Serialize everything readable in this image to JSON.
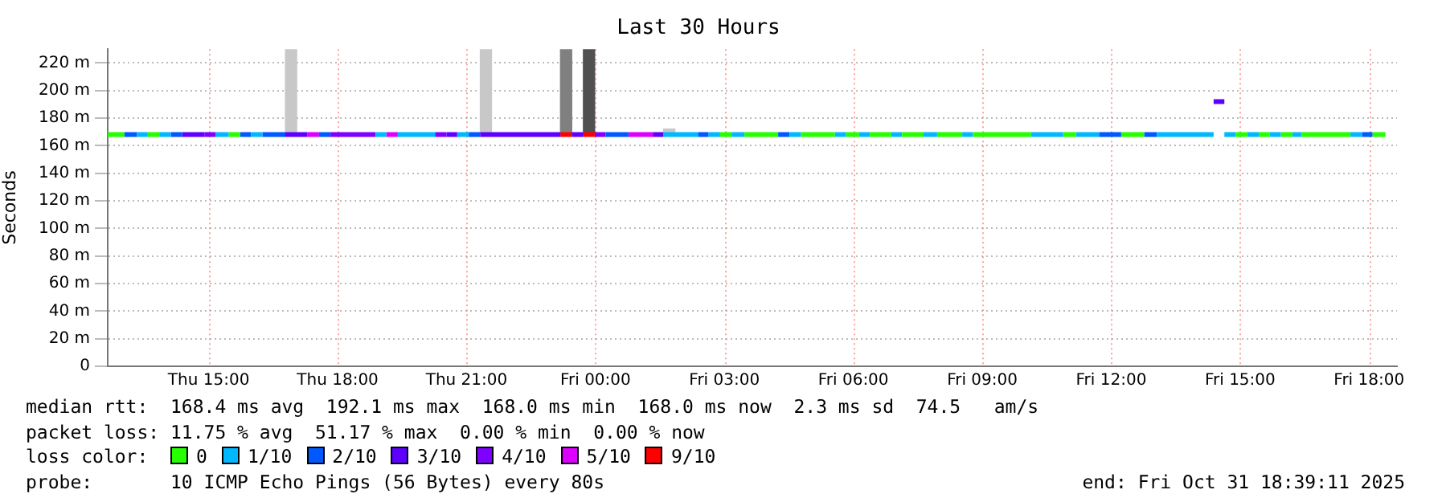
{
  "chart_data": {
    "type": "step",
    "title": "Last 30 Hours",
    "ylabel": "Seconds",
    "legend_title": "loss color:",
    "legend": "bottom",
    "grid": true,
    "xlim": [
      "2025-10-30T12:39",
      "2025-10-31T18:39"
    ],
    "xticks": [
      {
        "value": "2025-10-30T15:00",
        "label": "Thu 15:00"
      },
      {
        "value": "2025-10-30T18:00",
        "label": "Thu 18:00"
      },
      {
        "value": "2025-10-30T21:00",
        "label": "Thu 21:00"
      },
      {
        "value": "2025-10-31T00:00",
        "label": "Fri 00:00"
      },
      {
        "value": "2025-10-31T03:00",
        "label": "Fri 03:00"
      },
      {
        "value": "2025-10-31T06:00",
        "label": "Fri 06:00"
      },
      {
        "value": "2025-10-31T09:00",
        "label": "Fri 09:00"
      },
      {
        "value": "2025-10-31T12:00",
        "label": "Fri 12:00"
      },
      {
        "value": "2025-10-31T15:00",
        "label": "Fri 15:00"
      },
      {
        "value": "2025-10-31T18:00",
        "label": "Fri 18:00"
      }
    ],
    "ylim": [
      0,
      230
    ],
    "yticks": [
      0,
      {
        "value": 20,
        "label": "20 m"
      },
      {
        "value": 40,
        "label": "40 m"
      },
      {
        "value": 60,
        "label": "60 m"
      },
      {
        "value": 80,
        "label": "80 m"
      },
      {
        "value": 100,
        "label": "100 m"
      },
      {
        "value": 120,
        "label": "120 m"
      },
      {
        "value": 140,
        "label": "140 m"
      },
      {
        "value": 160,
        "label": "160 m"
      },
      {
        "value": 180,
        "label": "180 m"
      },
      {
        "value": 200,
        "label": "200 m"
      },
      {
        "value": 220,
        "label": "220 m"
      }
    ],
    "series": [
      {
        "type": "bar",
        "x": [
          "2025-10-30T16:55",
          "2025-10-30T21:27",
          "2025-10-30T23:19",
          "2025-10-30T23:51",
          "2025-10-31T01:43"
        ],
        "base": [
          168,
          168,
          168,
          168,
          168
        ],
        "values": [
          62,
          62,
          62,
          62,
          4
        ],
        "colors": [
          "#c8c8c8",
          "#c8c8c8",
          "#808080",
          "#505050",
          "#c8c8c8"
        ]
      },
      {
        "name": "0",
        "color": "#26ff00",
        "x": [
          "2025-10-30T12:39",
          "2025-10-30T13:02",
          null,
          "2025-10-30T13:35",
          "2025-10-30T13:51",
          null,
          "2025-10-30T15:28",
          "2025-10-30T15:44",
          null,
          "2025-10-31T02:54",
          "2025-10-31T03:10",
          null,
          "2025-10-31T03:28",
          "2025-10-31T04:15",
          null,
          "2025-10-31T04:47",
          "2025-10-31T05:34",
          null,
          "2025-10-31T05:50",
          "2025-10-31T06:08",
          null,
          "2025-10-31T06:23",
          "2025-10-31T06:53",
          null,
          "2025-10-31T07:08",
          "2025-10-31T07:38",
          null,
          "2025-10-31T07:57",
          "2025-10-31T08:32",
          null,
          "2025-10-31T08:47",
          "2025-10-31T10:08",
          null,
          "2025-10-31T10:53",
          "2025-10-31T11:11",
          null,
          "2025-10-31T12:14",
          "2025-10-31T12:46",
          null,
          "2025-10-31T14:54",
          "2025-10-31T15:10",
          null,
          "2025-10-31T15:26",
          "2025-10-31T15:41",
          null,
          "2025-10-31T15:57",
          "2025-10-31T16:13",
          null,
          "2025-10-31T16:26",
          "2025-10-31T17:34",
          null,
          "2025-10-31T18:05",
          "2025-10-31T18:23"
        ],
        "values": [
          168,
          168,
          null,
          168,
          168,
          null,
          168,
          168,
          null,
          168,
          168,
          null,
          168,
          168,
          null,
          168,
          168,
          null,
          168,
          168,
          null,
          168,
          168,
          null,
          168,
          168,
          null,
          168,
          168,
          null,
          168,
          168,
          null,
          168,
          168,
          null,
          168,
          168,
          null,
          168,
          168,
          null,
          168,
          168,
          null,
          168,
          168,
          null,
          168,
          168,
          null,
          168,
          168
        ]
      },
      {
        "name": "1/10",
        "color": "#00b8ff",
        "x": [
          "2025-10-30T13:20",
          "2025-10-30T13:35",
          null,
          "2025-10-30T13:51",
          "2025-10-30T14:07",
          null,
          "2025-10-30T15:10",
          "2025-10-30T15:28",
          null,
          "2025-10-30T15:59",
          "2025-10-30T16:15",
          null,
          "2025-10-30T18:53",
          "2025-10-30T19:08",
          null,
          "2025-10-30T19:24",
          "2025-10-30T20:16",
          null,
          "2025-10-30T20:47",
          "2025-10-30T21:03",
          null,
          "2025-10-31T01:35",
          "2025-10-31T02:23",
          null,
          "2025-10-31T02:38",
          "2025-10-31T02:54",
          null,
          "2025-10-31T03:10",
          "2025-10-31T03:28",
          null,
          "2025-10-31T04:31",
          "2025-10-31T04:47",
          null,
          "2025-10-31T05:34",
          "2025-10-31T05:50",
          null,
          "2025-10-31T06:08",
          "2025-10-31T06:23",
          null,
          "2025-10-31T06:53",
          "2025-10-31T07:08",
          null,
          "2025-10-31T07:38",
          "2025-10-31T07:57",
          null,
          "2025-10-31T08:32",
          "2025-10-31T08:47",
          null,
          "2025-10-31T10:08",
          "2025-10-31T10:53",
          null,
          "2025-10-31T11:11",
          "2025-10-31T11:43",
          null,
          "2025-10-31T13:04",
          "2025-10-31T14:23",
          null,
          "2025-10-31T14:38",
          "2025-10-31T14:54",
          null,
          "2025-10-31T15:10",
          "2025-10-31T15:26",
          null,
          "2025-10-31T15:41",
          "2025-10-31T15:57",
          null,
          "2025-10-31T16:13",
          "2025-10-31T16:26",
          null,
          "2025-10-31T17:34",
          "2025-10-31T17:50"
        ],
        "values": [
          168,
          168,
          null,
          168,
          168,
          null,
          168,
          168,
          null,
          168,
          168,
          null,
          168,
          168,
          null,
          168,
          168,
          null,
          168,
          168,
          null,
          168,
          168,
          null,
          168,
          168,
          null,
          168,
          168,
          null,
          168,
          168,
          null,
          168,
          168,
          null,
          168,
          168,
          null,
          168,
          168,
          null,
          168,
          168,
          null,
          168,
          168,
          null,
          168,
          168,
          null,
          168,
          168,
          null,
          168,
          168,
          null,
          168,
          168,
          null,
          168,
          168,
          null,
          168,
          168,
          null,
          168,
          168,
          null,
          168,
          168
        ]
      },
      {
        "name": "2/10",
        "color": "#0059ff",
        "x": [
          "2025-10-30T13:02",
          "2025-10-30T13:20",
          null,
          "2025-10-30T14:07",
          "2025-10-30T14:23",
          null,
          "2025-10-30T15:44",
          "2025-10-30T15:59",
          null,
          "2025-10-30T16:15",
          "2025-10-30T16:47",
          null,
          "2025-10-30T17:34",
          "2025-10-30T17:50",
          null,
          "2025-10-30T21:03",
          "2025-10-30T21:19",
          null,
          "2025-10-31T00:14",
          "2025-10-31T00:46",
          null,
          "2025-10-31T02:23",
          "2025-10-31T02:38",
          null,
          "2025-10-31T04:15",
          "2025-10-31T04:31",
          null,
          "2025-10-31T11:43",
          "2025-10-31T12:14",
          null,
          "2025-10-31T12:46",
          "2025-10-31T13:04",
          null,
          "2025-10-31T17:50",
          "2025-10-31T18:05"
        ],
        "values": [
          168,
          168,
          null,
          168,
          168,
          null,
          168,
          168,
          null,
          168,
          168,
          null,
          168,
          168,
          null,
          168,
          168,
          null,
          168,
          168,
          null,
          168,
          168,
          null,
          168,
          168,
          null,
          168,
          168,
          null,
          168,
          168,
          null,
          168,
          168
        ]
      },
      {
        "name": "3/10",
        "color": "#5e00ff",
        "x": [
          "2025-10-30T14:23",
          "2025-10-30T14:54",
          null,
          "2025-10-30T16:47",
          "2025-10-30T17:18",
          null,
          "2025-10-30T20:32",
          "2025-10-30T20:47",
          null,
          "2025-10-30T21:19",
          "2025-10-30T23:11",
          null,
          "2025-10-30T23:27",
          "2025-10-30T23:43",
          null,
          "2025-10-31T01:20",
          "2025-10-31T01:35",
          null,
          "2025-10-31T14:23",
          "2025-10-31T14:38"
        ],
        "values": [
          168,
          168,
          null,
          168,
          168,
          null,
          168,
          168,
          null,
          168,
          168,
          null,
          168,
          168,
          null,
          168,
          168,
          null,
          192,
          192
        ]
      },
      {
        "name": "4/10",
        "color": "#7e00ff",
        "x": [
          "2025-10-30T14:54",
          "2025-10-30T15:10",
          null,
          "2025-10-30T17:50",
          "2025-10-30T18:53",
          null,
          "2025-10-30T20:16",
          "2025-10-30T20:32",
          null,
          "2025-10-30T23:59",
          "2025-10-31T00:14"
        ],
        "values": [
          168,
          168,
          null,
          168,
          168,
          null,
          168,
          168,
          null,
          168,
          168
        ]
      },
      {
        "name": "5/10",
        "color": "#dd00ff",
        "x": [
          "2025-10-30T17:18",
          "2025-10-30T17:34",
          null,
          "2025-10-30T19:08",
          "2025-10-30T19:24",
          null,
          "2025-10-31T00:46",
          "2025-10-31T01:20"
        ],
        "values": [
          168,
          168,
          null,
          168,
          168,
          null,
          168,
          168
        ]
      },
      {
        "name": "9/10",
        "color": "#ff0000",
        "x": [
          "2025-10-30T23:11",
          "2025-10-30T23:27",
          null,
          "2025-10-30T23:43",
          "2025-10-30T23:59"
        ],
        "values": [
          168,
          168,
          null,
          168,
          168
        ]
      }
    ],
    "annotations": [
      "median rtt:  168.4 ms avg  192.1 ms max  168.0 ms min  168.0 ms now  2.3 ms sd  74.5   am/s",
      "packet loss: 11.75 % avg  51.17 % max  0.00 % min  0.00 % now",
      "probe:       10 ICMP Echo Pings (56 Bytes) every 80s",
      "end: Fri Oct 31 18:39:11 2025"
    ]
  }
}
